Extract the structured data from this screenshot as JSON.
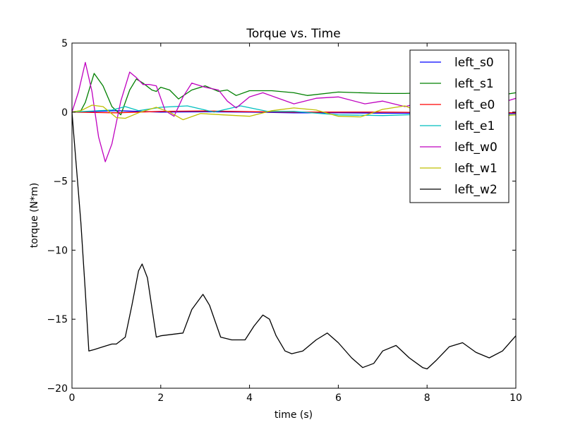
{
  "chart_data": {
    "type": "line",
    "title": "Torque vs. Time",
    "xlabel": "time (s)",
    "ylabel": "torque (N*m)",
    "xlim": [
      0,
      10
    ],
    "ylim": [
      -20,
      5
    ],
    "xticks": [
      0,
      2,
      4,
      6,
      8,
      10
    ],
    "yticks": [
      5,
      0,
      -5,
      -10,
      -15,
      -20
    ],
    "grid": false,
    "legend_position": "top-right",
    "series": [
      {
        "name": "left_s0",
        "color": "#0000ff",
        "x": [
          0,
          0.5,
          1.0,
          1.5,
          2.0,
          3.0,
          4.0,
          5.0,
          6.0,
          7.0,
          8.0,
          9.0,
          10.0
        ],
        "y": [
          0,
          0.05,
          0.1,
          0.05,
          0.0,
          0.02,
          0.0,
          -0.05,
          -0.05,
          -0.08,
          -0.08,
          -0.1,
          -0.1
        ]
      },
      {
        "name": "left_s1",
        "color": "#008000",
        "x": [
          0,
          0.2,
          0.3,
          0.5,
          0.7,
          0.9,
          1.1,
          1.3,
          1.45,
          1.6,
          1.8,
          1.9,
          2.0,
          2.2,
          2.4,
          2.7,
          3.0,
          3.3,
          3.5,
          3.7,
          4.0,
          4.5,
          5.0,
          5.3,
          6.0,
          7.0,
          7.5,
          8.0,
          9.0,
          9.5,
          10.0
        ],
        "y": [
          0,
          0.1,
          0.7,
          2.8,
          1.9,
          0.4,
          -0.2,
          1.6,
          2.4,
          2.1,
          1.6,
          1.5,
          1.8,
          1.6,
          0.95,
          1.6,
          1.9,
          1.5,
          1.6,
          1.2,
          1.55,
          1.55,
          1.4,
          1.2,
          1.45,
          1.35,
          1.35,
          1.4,
          1.05,
          1.15,
          1.4
        ]
      },
      {
        "name": "left_e0",
        "color": "#ff0000",
        "x": [
          0,
          1.0,
          2.0,
          3.0,
          4.0,
          5.0,
          6.0,
          7.0,
          8.0,
          9.0,
          10.0
        ],
        "y": [
          0,
          -0.05,
          0.05,
          0.08,
          0.03,
          0.0,
          0.0,
          0.0,
          -0.03,
          0.0,
          -0.05
        ]
      },
      {
        "name": "left_e1",
        "color": "#00bfbf",
        "x": [
          0,
          0.3,
          0.6,
          0.9,
          1.2,
          1.5,
          2.0,
          2.6,
          3.2,
          3.8,
          4.4,
          5.0,
          6.0,
          7.0,
          8.0,
          9.0,
          10.0
        ],
        "y": [
          0,
          0.05,
          0.1,
          0.15,
          0.4,
          0.1,
          0.35,
          0.45,
          0.0,
          0.45,
          0.05,
          0.05,
          -0.2,
          -0.25,
          -0.15,
          -0.2,
          -0.2
        ]
      },
      {
        "name": "left_w0",
        "color": "#bf00bf",
        "x": [
          0,
          0.15,
          0.3,
          0.45,
          0.6,
          0.75,
          0.9,
          1.1,
          1.3,
          1.45,
          1.6,
          1.75,
          1.9,
          2.1,
          2.3,
          2.5,
          2.7,
          3.0,
          3.3,
          3.5,
          3.7,
          4.0,
          4.3,
          5.0,
          5.5,
          6.0,
          6.6,
          7.0,
          7.5,
          8.0,
          8.5,
          9.0,
          9.5,
          10.0
        ],
        "y": [
          0,
          1.5,
          3.6,
          1.5,
          -1.8,
          -3.6,
          -2.3,
          0.8,
          2.9,
          2.5,
          2.0,
          2.0,
          1.9,
          0.1,
          -0.3,
          1.1,
          2.1,
          1.8,
          1.6,
          0.8,
          0.3,
          1.1,
          1.4,
          0.6,
          1.0,
          1.1,
          0.6,
          0.8,
          0.4,
          0.8,
          0.7,
          0.7,
          0.5,
          1.0
        ]
      },
      {
        "name": "left_w1",
        "color": "#bfbf00",
        "x": [
          0,
          0.2,
          0.45,
          0.7,
          1.0,
          1.2,
          1.5,
          1.9,
          2.2,
          2.5,
          2.9,
          3.4,
          4.0,
          4.5,
          5.0,
          5.5,
          6.0,
          6.5,
          7.0,
          7.5,
          8.0,
          8.5,
          9.0,
          9.5,
          10.0
        ],
        "y": [
          0,
          0.1,
          0.5,
          0.4,
          -0.4,
          -0.45,
          -0.05,
          0.35,
          0.0,
          -0.55,
          -0.1,
          -0.2,
          -0.3,
          0.1,
          0.3,
          0.15,
          -0.3,
          -0.35,
          0.2,
          0.45,
          -0.2,
          -0.15,
          -0.3,
          -0.3,
          -0.2
        ]
      },
      {
        "name": "left_w2",
        "color": "#000000",
        "x": [
          0,
          0.05,
          0.1,
          0.2,
          0.3,
          0.38,
          0.5,
          0.7,
          0.9,
          1.0,
          1.2,
          1.35,
          1.5,
          1.58,
          1.7,
          1.9,
          2.0,
          2.5,
          2.7,
          2.95,
          3.1,
          3.35,
          3.6,
          3.9,
          4.1,
          4.3,
          4.45,
          4.6,
          4.8,
          4.95,
          5.2,
          5.5,
          5.75,
          6.0,
          6.3,
          6.55,
          6.8,
          7.0,
          7.3,
          7.6,
          7.9,
          8.0,
          8.2,
          8.5,
          8.8,
          9.1,
          9.4,
          9.7,
          10.0
        ],
        "y": [
          0,
          -2,
          -4,
          -8,
          -13,
          -17.3,
          -17.2,
          -17.0,
          -16.8,
          -16.8,
          -16.3,
          -14.0,
          -11.5,
          -11.0,
          -12.0,
          -16.3,
          -16.2,
          -16.0,
          -14.3,
          -13.2,
          -14.0,
          -16.3,
          -16.5,
          -16.5,
          -15.5,
          -14.7,
          -15.0,
          -16.2,
          -17.3,
          -17.5,
          -17.3,
          -16.5,
          -16.0,
          -16.7,
          -17.8,
          -18.5,
          -18.2,
          -17.3,
          -16.9,
          -17.8,
          -18.5,
          -18.6,
          -18.0,
          -17.0,
          -16.7,
          -17.4,
          -17.8,
          -17.3,
          -16.2
        ]
      }
    ]
  }
}
